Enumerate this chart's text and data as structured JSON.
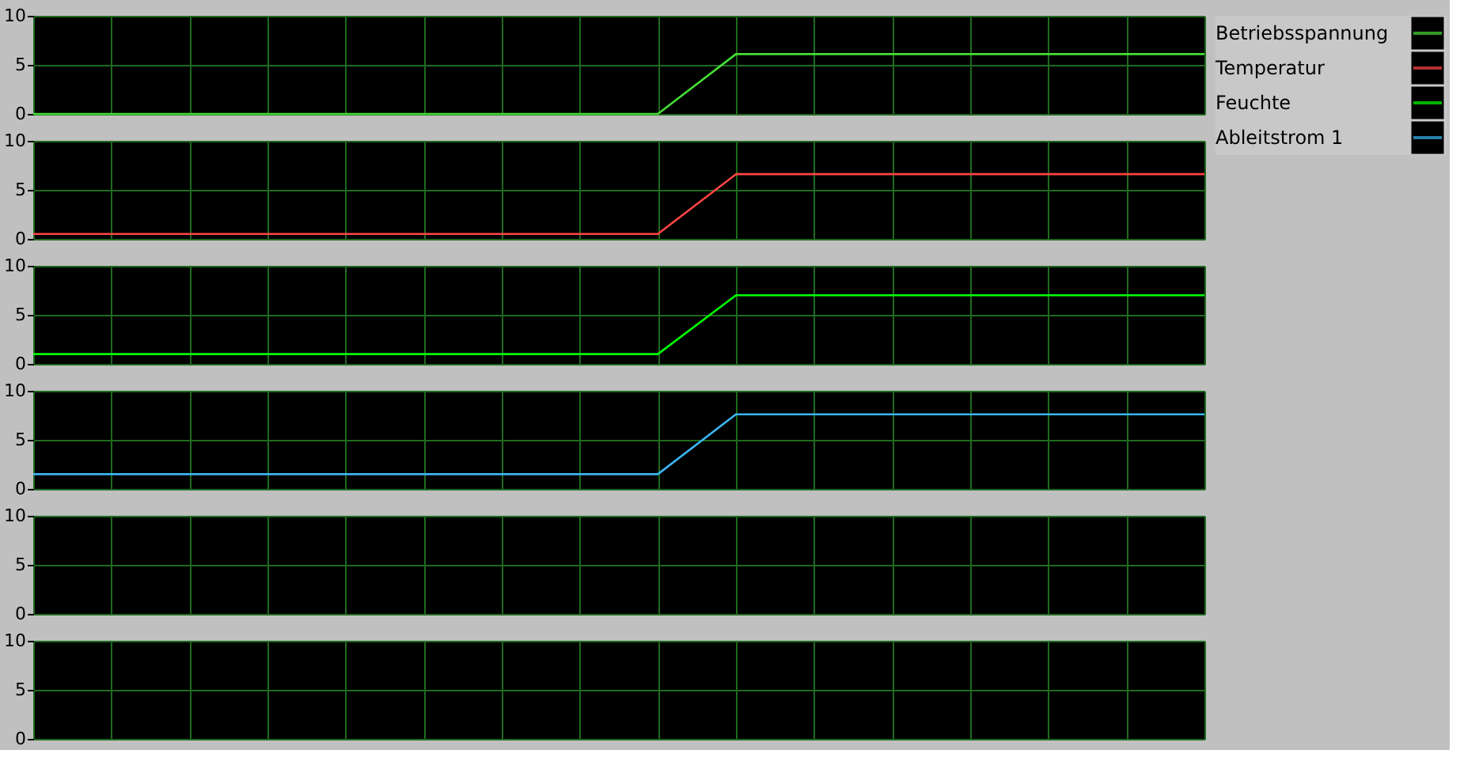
{
  "chart_data": [
    {
      "type": "line",
      "categories": [
        null,
        null,
        null,
        null,
        null,
        null,
        null,
        null,
        null,
        null,
        null,
        null,
        null,
        null,
        null,
        null
      ],
      "ylim": [
        0,
        10
      ],
      "yticks": [
        0,
        5,
        10
      ],
      "tick_labels": "y",
      "grid": true,
      "legend": "top right",
      "series": [
        {
          "name": "Betriebsspannung",
          "color": "#44dd33",
          "values": [
            0,
            0,
            0,
            0,
            0,
            0,
            0,
            0,
            0,
            6.1,
            6.1,
            6.1,
            6.1,
            6.1,
            6.1,
            6.1
          ]
        }
      ]
    },
    {
      "type": "line",
      "categories": [
        null,
        null,
        null,
        null,
        null,
        null,
        null,
        null,
        null,
        null,
        null,
        null,
        null,
        null,
        null,
        null
      ],
      "ylim": [
        0,
        10
      ],
      "yticks": [
        0,
        5,
        10
      ],
      "tick_labels": "y",
      "grid": true,
      "legend": "top right",
      "series": [
        {
          "name": "Temperatur",
          "color": "#ff4444",
          "values": [
            0.5,
            0.5,
            0.5,
            0.5,
            0.5,
            0.5,
            0.5,
            0.5,
            0.5,
            6.6,
            6.6,
            6.6,
            6.6,
            6.6,
            6.6,
            6.6
          ]
        }
      ]
    },
    {
      "type": "line",
      "categories": [
        null,
        null,
        null,
        null,
        null,
        null,
        null,
        null,
        null,
        null,
        null,
        null,
        null,
        null,
        null,
        null
      ],
      "ylim": [
        0,
        10
      ],
      "yticks": [
        0,
        5,
        10
      ],
      "tick_labels": "y",
      "grid": true,
      "legend": "top right",
      "series": [
        {
          "name": "Feuchte",
          "color": "#00ff00",
          "values": [
            1.0,
            1.0,
            1.0,
            1.0,
            1.0,
            1.0,
            1.0,
            1.0,
            1.0,
            7.0,
            7.0,
            7.0,
            7.0,
            7.0,
            7.0,
            7.0
          ]
        }
      ]
    },
    {
      "type": "line",
      "categories": [
        null,
        null,
        null,
        null,
        null,
        null,
        null,
        null,
        null,
        null,
        null,
        null,
        null,
        null,
        null,
        null
      ],
      "ylim": [
        0,
        10
      ],
      "yticks": [
        0,
        5,
        10
      ],
      "tick_labels": "y",
      "grid": true,
      "legend": "top right",
      "series": [
        {
          "name": "Ableitstrom 1",
          "color": "#3ab4f0",
          "values": [
            1.5,
            1.5,
            1.5,
            1.5,
            1.5,
            1.5,
            1.5,
            1.5,
            1.5,
            7.6,
            7.6,
            7.6,
            7.6,
            7.6,
            7.6,
            7.6
          ]
        }
      ]
    },
    {
      "type": "line",
      "categories": [
        null,
        null,
        null,
        null,
        null,
        null,
        null,
        null,
        null,
        null,
        null,
        null,
        null,
        null,
        null,
        null
      ],
      "ylim": [
        0,
        10
      ],
      "yticks": [
        0,
        5,
        10
      ],
      "tick_labels": "y",
      "grid": true
    },
    {
      "type": "line",
      "categories": [
        null,
        null,
        null,
        null,
        null,
        null,
        null,
        null,
        null,
        null,
        null,
        null,
        null,
        null,
        null,
        null
      ],
      "ylim": [
        0,
        10
      ],
      "yticks": [
        0,
        5,
        10
      ],
      "tick_labels": "y",
      "grid": true
    }
  ]
}
